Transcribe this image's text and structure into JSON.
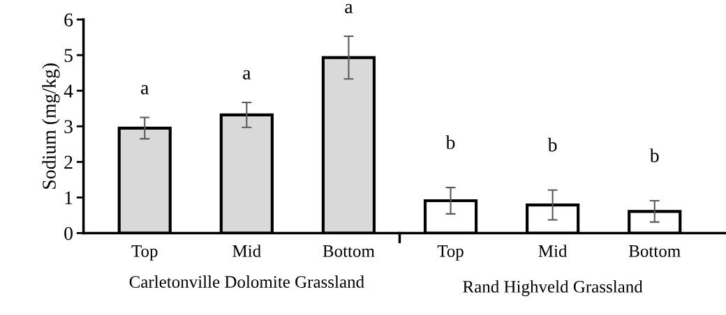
{
  "chart_data": {
    "type": "bar",
    "ylabel": "Sodium (mg/kg)",
    "categories": [
      "Top",
      "Mid",
      "Bottom",
      "Top",
      "Mid",
      "Bottom"
    ],
    "values": [
      2.95,
      3.32,
      4.93,
      0.91,
      0.79,
      0.61
    ],
    "errors": [
      0.3,
      0.35,
      0.6,
      0.37,
      0.42,
      0.3
    ],
    "colors": [
      "#d9d9d9",
      "#d9d9d9",
      "#d9d9d9",
      "#ffffff",
      "#ffffff",
      "#ffffff"
    ],
    "annotations": [
      "a",
      "a",
      "a",
      "b",
      "b",
      "b",
      "Carletonville Dolomite Grassland",
      "Rand Highveld Grassland"
    ],
    "ylim": [
      0,
      6
    ],
    "yticks": [
      0,
      1,
      2,
      3,
      4,
      5,
      6
    ],
    "grid": false,
    "legend": false
  }
}
